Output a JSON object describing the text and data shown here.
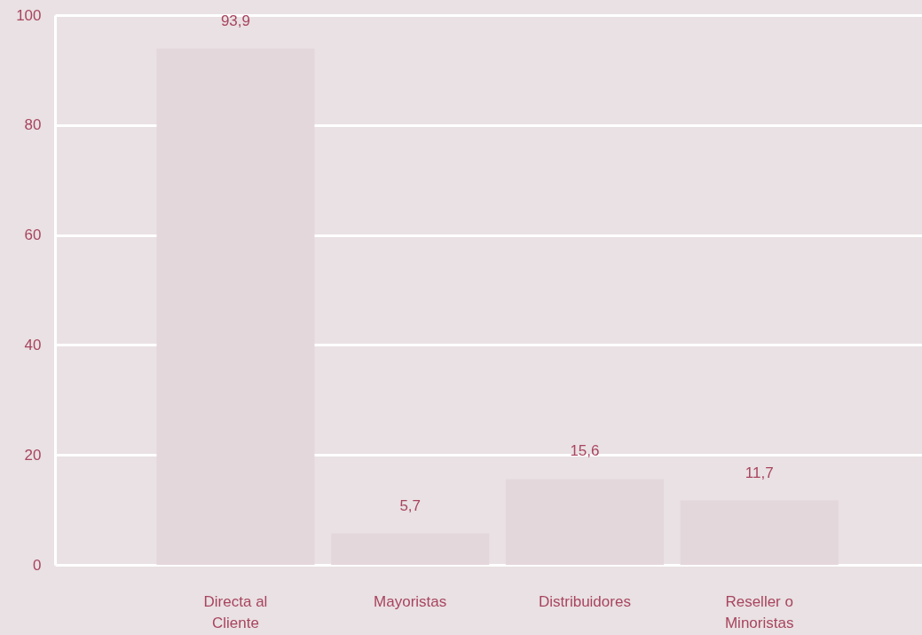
{
  "chart_data": {
    "type": "bar",
    "categories": [
      "Directa al Cliente",
      "Mayoristas",
      "Distribuidores",
      "Reseller o Minoristas"
    ],
    "values": [
      93.9,
      5.7,
      15.6,
      11.7
    ],
    "value_labels": [
      "93,9",
      "5,7",
      "15,6",
      "11,7"
    ],
    "color": "#e4d7db",
    "ylim": [
      0,
      100
    ],
    "yticks": [
      0,
      20,
      40,
      60,
      80,
      100
    ],
    "grid": "y"
  }
}
